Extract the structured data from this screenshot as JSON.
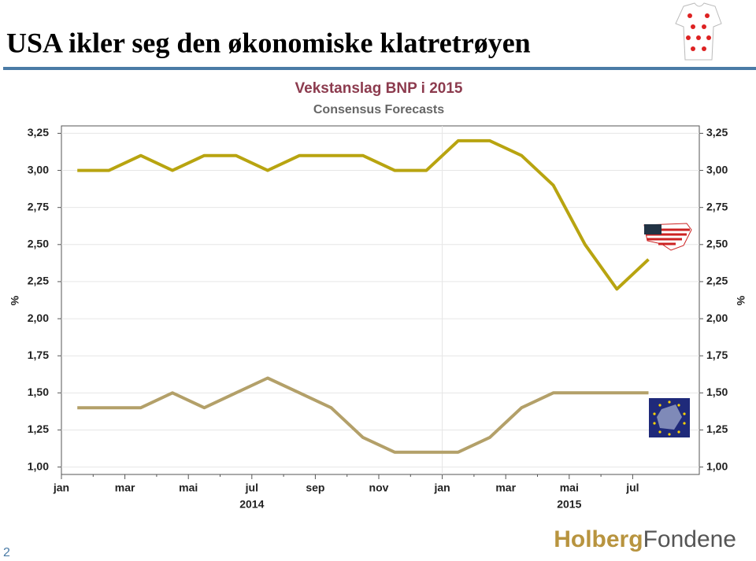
{
  "header": {
    "title": "USA ikler seg den økonomiske klatretrøyen"
  },
  "chart_data": {
    "type": "line",
    "title": "Vekstanslag BNP i 2015",
    "subtitle": "Consensus Forecasts",
    "ylabel": "%",
    "y2label": "%",
    "categories": [
      "jan",
      null,
      "mar",
      null,
      "mai",
      null,
      "jul",
      null,
      "sep",
      null,
      "nov",
      null,
      "jan",
      null,
      "mar",
      null,
      "mai",
      null,
      "jul"
    ],
    "year_labels": [
      {
        "text": "2014",
        "index": 6,
        "start": 0
      },
      {
        "text": "2015",
        "index": 16,
        "start": 12
      }
    ],
    "series": [
      {
        "color": "#b8a410",
        "values": [
          3.0,
          3.0,
          3.1,
          3.0,
          3.1,
          3.1,
          3.0,
          3.1,
          3.1,
          3.1,
          3.0,
          3.0,
          3.2,
          3.2,
          3.1,
          2.9,
          2.5,
          2.2,
          2.4
        ]
      },
      {
        "color": "#b3a069",
        "values": [
          1.4,
          1.4,
          1.4,
          1.5,
          1.4,
          1.5,
          1.6,
          1.5,
          1.4,
          1.2,
          1.1,
          1.1,
          1.1,
          1.2,
          1.4,
          1.5,
          1.5,
          1.5,
          1.5
        ]
      }
    ],
    "ylim": [
      0.95,
      3.3
    ],
    "yticks": [
      {
        "value": 1.0,
        "label": "1,00"
      },
      {
        "value": 1.25,
        "label": "1,25"
      },
      {
        "value": 1.5,
        "label": "1,50"
      },
      {
        "value": 1.75,
        "label": "1,75"
      },
      {
        "value": 2.0,
        "label": "2,00"
      },
      {
        "value": 2.25,
        "label": "2,25"
      },
      {
        "value": 2.5,
        "label": "2,50"
      },
      {
        "value": 2.75,
        "label": "2,75"
      },
      {
        "value": 3.0,
        "label": "3,00"
      },
      {
        "value": 3.25,
        "label": "3,25"
      }
    ],
    "grid": true
  },
  "footer": {
    "page": "2",
    "logo_left": "Holberg",
    "logo_right": "Fondene"
  }
}
